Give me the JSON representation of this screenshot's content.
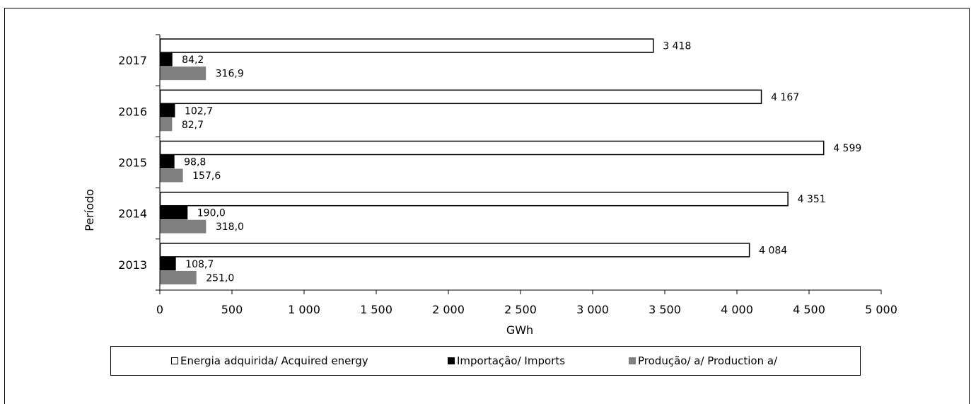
{
  "chart_data": {
    "type": "bar",
    "orientation": "horizontal",
    "categories": [
      "2017",
      "2016",
      "2015",
      "2014",
      "2013"
    ],
    "series": [
      {
        "name": "Energia adquirida/ Acquired energy",
        "color": "#ffffff",
        "values": [
          3418,
          4167,
          4599,
          4351,
          4084
        ],
        "labels": [
          "3 418",
          "4 167",
          "4 599",
          "4 351",
          "4 084"
        ]
      },
      {
        "name": "Importação/ Imports",
        "color": "#000000",
        "values": [
          84.2,
          102.7,
          98.8,
          190.0,
          108.7
        ],
        "labels": [
          "84,2",
          "102,7",
          "98,8",
          "190,0",
          "108,7"
        ]
      },
      {
        "name": "Produção/ a/ Production a/",
        "color": "#808080",
        "values": [
          316.9,
          82.7,
          157.6,
          318.0,
          251.0
        ],
        "labels": [
          "316,9",
          "82,7",
          "157,6",
          "318,0",
          "251,0"
        ]
      }
    ],
    "xlabel": "GWh",
    "ylabel": "Período",
    "xlim": [
      0,
      5000
    ],
    "xticks": [
      0,
      500,
      1000,
      1500,
      2000,
      2500,
      3000,
      3500,
      4000,
      4500,
      5000
    ],
    "xtick_labels": [
      "0",
      "500",
      "1 000",
      "1 500",
      "2 000",
      "2 500",
      "3 000",
      "3 500",
      "4 000",
      "4 500",
      "5 000"
    ],
    "grid": false,
    "legend_position": "bottom"
  }
}
